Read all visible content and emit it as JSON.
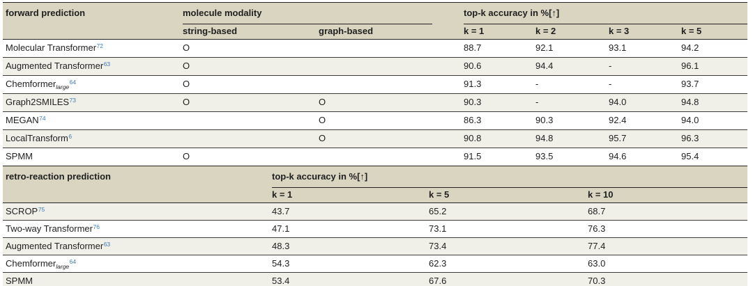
{
  "colors": {
    "header_bg": "#d9d5c1",
    "stripe_bg": "#f0efe8",
    "row_bg": "#ffffff",
    "rule": "#222222",
    "citation_blue": "#3e7db7"
  },
  "section1": {
    "title": "forward prediction",
    "modality_header": "molecule modality",
    "topk_header": "top-k accuracy in %[↑]",
    "modality_cols": [
      "string-based",
      "graph-based"
    ],
    "k_cols": [
      "k = 1",
      "k = 2",
      "k = 3",
      "k = 5"
    ],
    "mark": "O",
    "rows": [
      {
        "name": "Molecular Transformer",
        "sub": "",
        "sup": "72",
        "string": "O",
        "graph": "",
        "values": [
          "88.7",
          "92.1",
          "93.1",
          "94.2"
        ]
      },
      {
        "name": "Augmented Transformer",
        "sub": "",
        "sup": "63",
        "string": "O",
        "graph": "",
        "values": [
          "90.6",
          "94.4",
          "-",
          "96.1"
        ]
      },
      {
        "name": "Chemformer",
        "sub": "large",
        "sup": "64",
        "string": "O",
        "graph": "",
        "values": [
          "91.3",
          "-",
          "-",
          "93.7"
        ]
      },
      {
        "name": "Graph2SMILES",
        "sub": "",
        "sup": "73",
        "string": "O",
        "graph": "O",
        "values": [
          "90.3",
          "-",
          "94.0",
          "94.8"
        ]
      },
      {
        "name": "MEGAN",
        "sub": "",
        "sup": "74",
        "string": "",
        "graph": "O",
        "values": [
          "86.3",
          "90.3",
          "92.4",
          "94.0"
        ]
      },
      {
        "name": "LocalTransform",
        "sub": "",
        "sup": "6",
        "string": "",
        "graph": "O",
        "values": [
          "90.8",
          "94.8",
          "95.7",
          "96.3"
        ]
      },
      {
        "name": "SPMM",
        "sub": "",
        "sup": "",
        "string": "O",
        "graph": "",
        "values": [
          "91.5",
          "93.5",
          "94.6",
          "95.4"
        ]
      }
    ]
  },
  "section2": {
    "title": "retro-reaction prediction",
    "topk_header": "top-k accuracy in %[↑]",
    "k_cols": [
      "k = 1",
      "k = 5",
      "k = 10"
    ],
    "rows": [
      {
        "name": "SCROP",
        "sub": "",
        "sup": "75",
        "values": [
          "43.7",
          "65.2",
          "68.7"
        ]
      },
      {
        "name": "Two-way Transformer",
        "sub": "",
        "sup": "76",
        "values": [
          "47.1",
          "73.1",
          "76.3"
        ]
      },
      {
        "name": "Augmented Transformer",
        "sub": "",
        "sup": "63",
        "values": [
          "48.3",
          "73.4",
          "77.4"
        ]
      },
      {
        "name": "Chemformer",
        "sub": "large",
        "sup": "64",
        "values": [
          "54.3",
          "62.3",
          "63.0"
        ]
      },
      {
        "name": "SPMM",
        "sub": "",
        "sup": "",
        "values": [
          "53.4",
          "67.6",
          "70.3"
        ]
      }
    ]
  }
}
